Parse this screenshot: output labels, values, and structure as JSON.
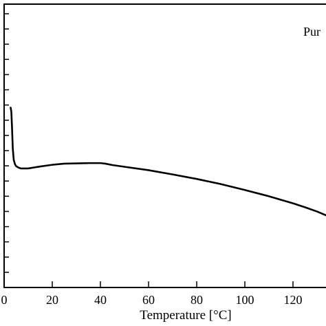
{
  "chart_data": {
    "type": "line",
    "title": "",
    "xlabel": "Temperature [°C]",
    "ylabel": "",
    "xlim": [
      0,
      135
    ],
    "ylim": [
      0,
      1
    ],
    "x_ticks": [
      0,
      20,
      40,
      60,
      80,
      100,
      120
    ],
    "x_tick_labels": [
      "0",
      "20",
      "40",
      "60",
      "80",
      "100",
      "120"
    ],
    "y_tick_count": 19,
    "grid": false,
    "legend_position": "top-right",
    "series": [
      {
        "name": "Pur",
        "color": "#000000",
        "x": [
          2.7,
          3.0,
          3.3,
          3.6,
          4.0,
          4.5,
          5.0,
          6.0,
          7.0,
          8.0,
          10.0,
          12.0,
          15.0,
          20.0,
          25.0,
          30.0,
          35.0,
          40.0,
          42.0,
          45.0,
          50.0,
          60.0,
          70.0,
          80.0,
          90.0,
          100.0,
          110.0,
          120.0,
          125.0,
          130.0,
          135.0
        ],
        "y": [
          0.635,
          0.62,
          0.56,
          0.49,
          0.45,
          0.435,
          0.428,
          0.423,
          0.42,
          0.42,
          0.42,
          0.423,
          0.427,
          0.433,
          0.437,
          0.438,
          0.439,
          0.439,
          0.437,
          0.432,
          0.426,
          0.414,
          0.399,
          0.383,
          0.365,
          0.344,
          0.322,
          0.297,
          0.283,
          0.268,
          0.25
        ]
      }
    ]
  }
}
